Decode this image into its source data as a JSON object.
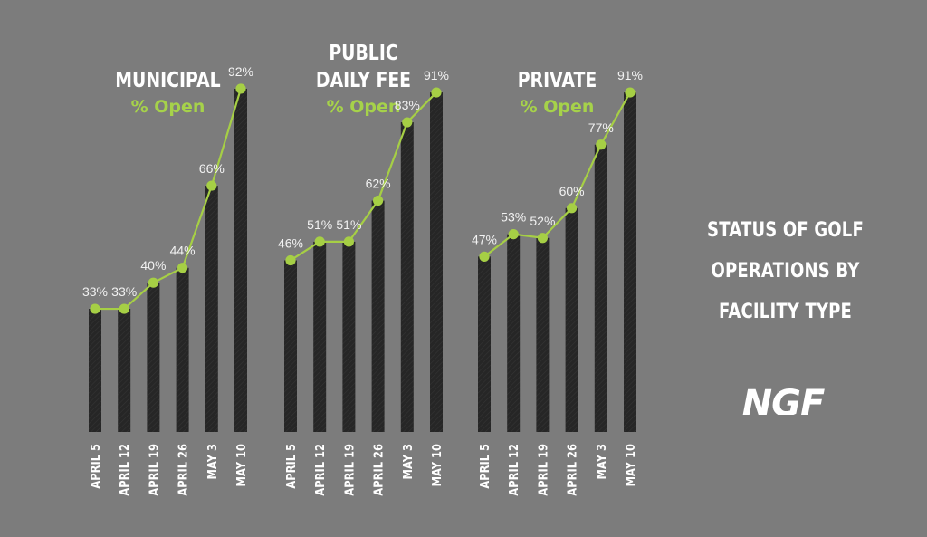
{
  "chart_data": [
    {
      "type": "bar",
      "title_lines": [
        "MUNICIPAL"
      ],
      "subtitle": "% Open",
      "categories": [
        "APRIL 5",
        "APRIL 12",
        "APRIL 19",
        "APRIL 26",
        "MAY 3",
        "MAY 10"
      ],
      "values": [
        33,
        33,
        40,
        44,
        66,
        92
      ],
      "labels": [
        "33%",
        "33%",
        "40%",
        "44%",
        "66%",
        "92%"
      ],
      "ylim": [
        0,
        100
      ],
      "overlay": "line"
    },
    {
      "type": "bar",
      "title_lines": [
        "PUBLIC",
        "DAILY FEE"
      ],
      "subtitle": "% Open",
      "categories": [
        "APRIL 5",
        "APRIL 12",
        "APRIL 19",
        "APRIL 26",
        "MAY 3",
        "MAY 10"
      ],
      "values": [
        46,
        51,
        51,
        62,
        83,
        91
      ],
      "labels": [
        "46%",
        "51%",
        "51%",
        "62%",
        "83%",
        "91%"
      ],
      "ylim": [
        0,
        100
      ],
      "overlay": "line"
    },
    {
      "type": "bar",
      "title_lines": [
        "PRIVATE"
      ],
      "subtitle": "% Open",
      "categories": [
        "APRIL 5",
        "APRIL 12",
        "APRIL 19",
        "APRIL 26",
        "MAY 3",
        "MAY 10"
      ],
      "values": [
        47,
        53,
        52,
        60,
        77,
        91
      ],
      "labels": [
        "47%",
        "53%",
        "52%",
        "60%",
        "77%",
        "91%"
      ],
      "ylim": [
        0,
        100
      ],
      "overlay": "line"
    }
  ],
  "headline": {
    "lines": [
      "STATUS OF GOLF",
      "OPERATIONS BY",
      "FACILITY TYPE"
    ]
  },
  "logo": {
    "text": "NGF"
  },
  "colors": {
    "background": "#7c7c7c",
    "bar": "#262626",
    "line": "#a6cf45",
    "title": "#ffffff",
    "subtitle": "#a6d24a",
    "label": "#f2f2f2"
  }
}
